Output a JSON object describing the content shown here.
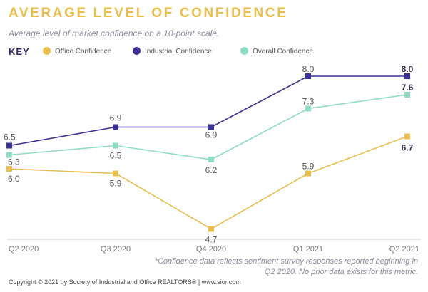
{
  "header": {
    "title": "AVERAGE LEVEL OF CONFIDENCE",
    "subtitle": "Average level of market confidence on a 10-point scale."
  },
  "legend": {
    "key_label": "KEY",
    "items": [
      {
        "label": "Office Confidence",
        "color": "#e9be4d"
      },
      {
        "label": "Industrial Confidence",
        "color": "#3b3294"
      },
      {
        "label": "Overall Confidence",
        "color": "#8fdcc4"
      }
    ]
  },
  "chart_data": {
    "type": "line",
    "title": "AVERAGE LEVEL OF CONFIDENCE",
    "categories": [
      "Q2 2020",
      "Q3 2020",
      "Q4 2020",
      "Q1 2021",
      "Q2 2021"
    ],
    "series": [
      {
        "name": "Office Confidence",
        "color": "#e9be4d",
        "values": [
          6.0,
          5.9,
          4.7,
          5.9,
          6.7
        ],
        "labels": [
          "6.0",
          "5.9",
          "4.7",
          "5.9",
          "6.7"
        ]
      },
      {
        "name": "Industrial Confidence",
        "color": "#3b3294",
        "values": [
          6.5,
          6.9,
          6.9,
          8.0,
          8.0
        ],
        "labels": [
          "6.5",
          "6.9",
          "6.9",
          "8.0",
          "8.0"
        ]
      },
      {
        "name": "Overall Confidence",
        "color": "#8fdcc4",
        "values": [
          6.3,
          6.5,
          6.2,
          7.3,
          7.6
        ],
        "labels": [
          "6.3",
          "6.5",
          "6.2",
          "7.3",
          "7.6"
        ]
      }
    ],
    "grid": false,
    "legend_position": "top"
  },
  "footnote": "*Confidence data reflects sentiment survey responses reported beginning in Q2 2020. No prior data exists for this metric.",
  "copyright": "Copyright © 2021 by Society of Industrial and Office REALTORS® | www.sior.com"
}
